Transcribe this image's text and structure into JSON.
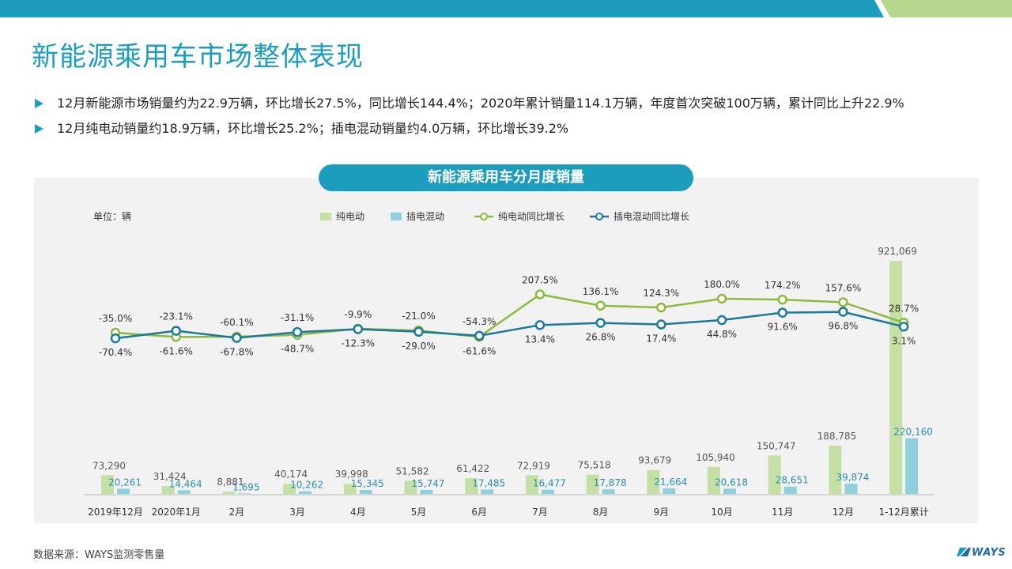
{
  "title": "新能源乘用车市场整体表现",
  "bullets": [
    "12月新能源市场销量约为22.9万辆，环比增长27.5%，同比增长144.4%；2020年累计销量114.1万辆，年度首次突破100万辆，累计同比上升22.9%",
    "12月纯电动销量约18.9万辆，环比增长25.2%；插电混动销量约4.0万辆，环比增长39.2%"
  ],
  "chart_title": "新能源乘用车分月度销量",
  "footer_source": "数据来源：WAYS监测零售量",
  "brand_logo": "WAYS",
  "colors": {
    "accent": "#1c9dbe",
    "band_green": "#b5d88c",
    "bev_bar": "#c5e0a5",
    "phev_bar": "#8fd0dc",
    "bev_line": "#8cbb3c",
    "phev_line": "#1b7a9c"
  },
  "chart_data": {
    "type": "bar+line",
    "unit_label": "单位：辆",
    "categories": [
      "2019年12月",
      "2020年1月",
      "2月",
      "3月",
      "4月",
      "5月",
      "6月",
      "7月",
      "8月",
      "9月",
      "10月",
      "11月",
      "12月",
      "1-12月累计"
    ],
    "bar_series": [
      {
        "name": "纯电动",
        "values": [
          73290,
          31424,
          8881,
          40174,
          39998,
          51582,
          61422,
          72919,
          75518,
          93679,
          105940,
          150747,
          188785,
          921069
        ]
      },
      {
        "name": "插电混动",
        "values": [
          20261,
          14464,
          1695,
          10262,
          15345,
          15747,
          17485,
          16477,
          17878,
          21664,
          20618,
          28651,
          39874,
          220160
        ]
      }
    ],
    "bar_labels": [
      [
        "73,290",
        "31,424",
        "8,881",
        "40,174",
        "39,998",
        "51,582",
        "61,422",
        "72,919",
        "75,518",
        "93,679",
        "105,940",
        "150,747",
        "188,785",
        "921,069"
      ],
      [
        "20,261",
        "14,464",
        "1,695",
        "10,262",
        "15,345",
        "15,747",
        "17,485",
        "16,477",
        "17,878",
        "21,664",
        "20,618",
        "28,651",
        "39,874",
        "220,160"
      ]
    ],
    "line_series": [
      {
        "name": "纯电动同比增长",
        "values": [
          -35.0,
          -61.6,
          -60.1,
          -48.7,
          -9.9,
          -21.0,
          -61.6,
          207.5,
          136.1,
          124.3,
          180.0,
          174.2,
          157.6,
          28.7
        ]
      },
      {
        "name": "插电混动同比增长",
        "values": [
          -70.4,
          -23.1,
          -67.8,
          -31.1,
          -12.3,
          -29.0,
          -54.3,
          13.4,
          26.8,
          17.4,
          44.8,
          91.6,
          96.8,
          3.1
        ]
      }
    ],
    "line_labels": [
      [
        "-35.0%",
        "-61.6%",
        "-60.1%",
        "-48.7%",
        "-9.9%",
        "-21.0%",
        "-61.6%",
        "207.5%",
        "136.1%",
        "124.3%",
        "180.0%",
        "174.2%",
        "157.6%",
        "28.7%"
      ],
      [
        "-70.4%",
        "-23.1%",
        "-67.8%",
        "-31.1%",
        "-12.3%",
        "-29.0%",
        "-54.3%",
        "13.4%",
        "26.8%",
        "17.4%",
        "44.8%",
        "91.6%",
        "96.8%",
        "3.1%"
      ]
    ],
    "legend": [
      "纯电动",
      "插电混动",
      "纯电动同比增长",
      "插电混动同比增长"
    ],
    "legend_position": "top",
    "grid": false
  }
}
